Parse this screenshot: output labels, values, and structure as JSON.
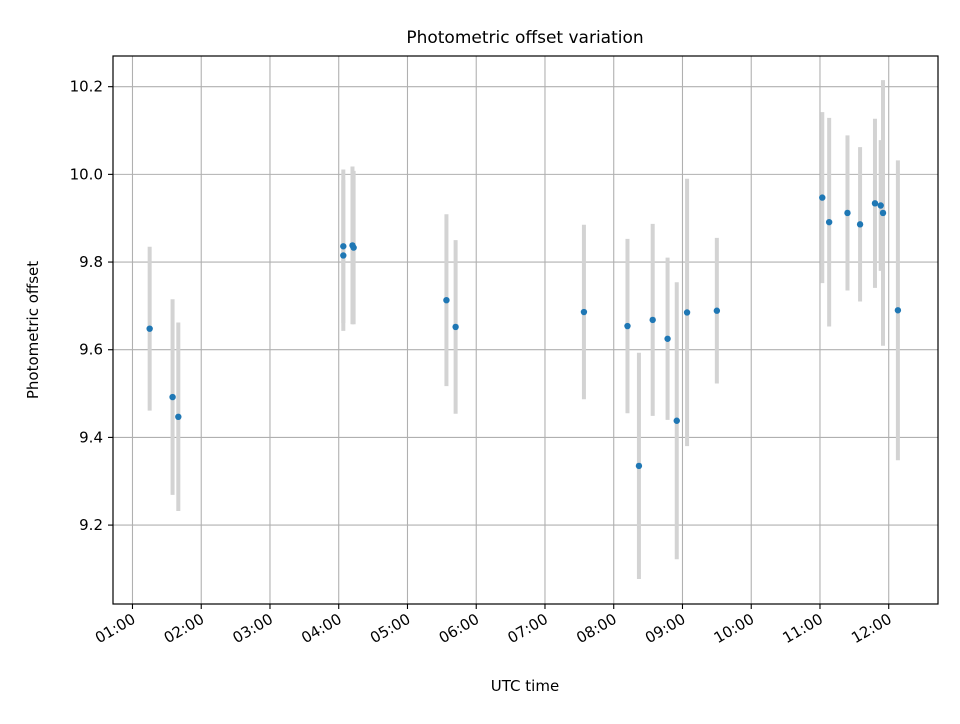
{
  "chart_data": {
    "type": "scatter",
    "title": "Photometric offset variation",
    "xlabel": "UTC time",
    "ylabel": "Photometric offset",
    "x_unit": "UTC hours",
    "xlim": [
      "00:43",
      "12:43"
    ],
    "ylim": [
      9.02,
      10.27
    ],
    "x_ticks": [
      "01:00",
      "02:00",
      "03:00",
      "04:00",
      "05:00",
      "06:00",
      "07:00",
      "08:00",
      "09:00",
      "10:00",
      "11:00",
      "12:00"
    ],
    "y_ticks": [
      "9.2",
      "9.4",
      "9.6",
      "9.8",
      "10.0",
      "10.2"
    ],
    "grid": true,
    "legend": "none",
    "series": [
      {
        "errorbar_color": "#d3d3d3",
        "marker_color": "#1f77b4",
        "points": [
          {
            "x": "01:15",
            "y": 9.648,
            "yerr": 0.187
          },
          {
            "x": "01:35",
            "y": 9.492,
            "yerr": 0.223
          },
          {
            "x": "01:40",
            "y": 9.447,
            "yerr": 0.215
          },
          {
            "x": "04:04",
            "y": 9.836,
            "yerr": 0.175
          },
          {
            "x": "04:04",
            "y": 9.815,
            "yerr": 0.172
          },
          {
            "x": "04:12",
            "y": 9.838,
            "yerr": 0.18
          },
          {
            "x": "04:13",
            "y": 9.833,
            "yerr": 0.175
          },
          {
            "x": "05:34",
            "y": 9.713,
            "yerr": 0.196
          },
          {
            "x": "05:42",
            "y": 9.652,
            "yerr": 0.198
          },
          {
            "x": "07:34",
            "y": 9.686,
            "yerr": 0.199
          },
          {
            "x": "08:12",
            "y": 9.654,
            "yerr": 0.199
          },
          {
            "x": "08:22",
            "y": 9.335,
            "yerr": 0.258
          },
          {
            "x": "08:34",
            "y": 9.668,
            "yerr": 0.219
          },
          {
            "x": "08:47",
            "y": 9.625,
            "yerr": 0.185
          },
          {
            "x": "08:55",
            "y": 9.438,
            "yerr": 0.316
          },
          {
            "x": "09:04",
            "y": 9.685,
            "yerr": 0.305
          },
          {
            "x": "09:30",
            "y": 9.689,
            "yerr": 0.166
          },
          {
            "x": "11:02",
            "y": 9.947,
            "yerr": 0.195
          },
          {
            "x": "11:08",
            "y": 9.891,
            "yerr": 0.238
          },
          {
            "x": "11:24",
            "y": 9.912,
            "yerr": 0.177
          },
          {
            "x": "11:35",
            "y": 9.886,
            "yerr": 0.176
          },
          {
            "x": "11:48",
            "y": 9.934,
            "yerr": 0.193
          },
          {
            "x": "11:53",
            "y": 9.929,
            "yerr": 0.149
          },
          {
            "x": "11:55",
            "y": 9.912,
            "yerr": 0.303
          },
          {
            "x": "12:08",
            "y": 9.69,
            "yerr": 0.342
          }
        ]
      }
    ]
  }
}
